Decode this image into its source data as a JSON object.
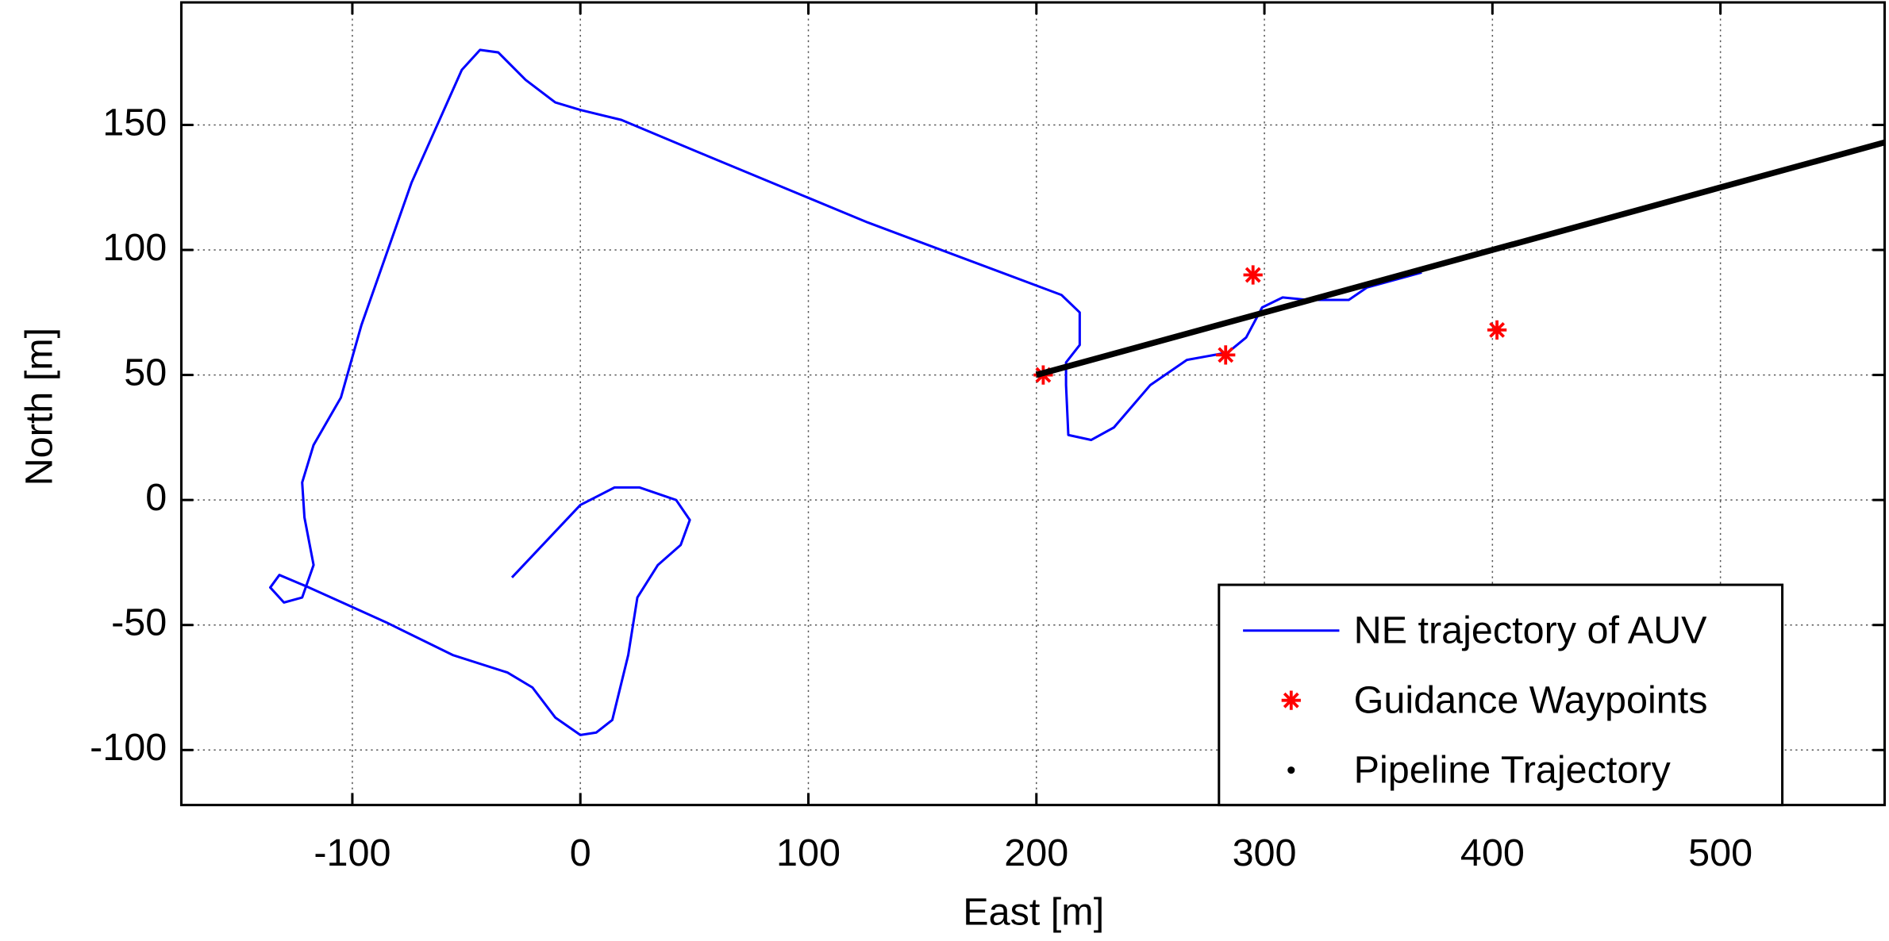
{
  "chart_data": {
    "type": "line",
    "xlabel": "East [m]",
    "ylabel": "North [m]",
    "xlim": [
      -175,
      572
    ],
    "ylim": [
      -122,
      199
    ],
    "xticks": [
      -100,
      0,
      100,
      200,
      300,
      400,
      500
    ],
    "yticks": [
      -100,
      -50,
      0,
      50,
      100,
      150
    ],
    "grid": true,
    "legend": "lower right",
    "series": [
      {
        "name": "NE trajectory of AUV",
        "color": "#0000ff",
        "marker": "none",
        "linewidth": 2,
        "x": [
          -30,
          0,
          15,
          26,
          42,
          48,
          44,
          34,
          25,
          21,
          14,
          7,
          0,
          -11,
          -21,
          -32,
          -56,
          -85,
          -119,
          -132,
          -136,
          -130,
          -122,
          -117,
          -121,
          -122,
          -117,
          -105,
          -96,
          -74,
          -52,
          -44,
          -36,
          -24,
          -11,
          0,
          18,
          52,
          126,
          211,
          219,
          219,
          213,
          213,
          214,
          224,
          234,
          250,
          266,
          284,
          292,
          299,
          308,
          319,
          337,
          345,
          369
        ],
        "values": [
          -31,
          -2,
          5,
          5,
          0,
          -8,
          -18,
          -26,
          -39,
          -62,
          -88,
          -93,
          -94,
          -87,
          -75,
          -69,
          -62,
          -49,
          -35,
          -30,
          -35,
          -41,
          -39,
          -26,
          -7,
          7,
          22,
          41,
          70,
          127,
          172,
          180,
          179,
          168,
          159,
          156,
          152,
          139,
          111,
          82,
          75,
          62,
          55,
          46,
          26,
          24,
          29,
          46,
          56,
          59,
          65,
          77,
          81,
          80,
          80,
          85,
          91
        ]
      },
      {
        "name": "Guidance Waypoints",
        "color": "#ff0000",
        "marker": "*",
        "linewidth": 0,
        "x": [
          203,
          283,
          295,
          402
        ],
        "values": [
          50,
          58,
          90,
          68
        ]
      },
      {
        "name": "Pipeline Trajectory",
        "color": "#000000",
        "marker": ".",
        "linewidth": 5,
        "x": [
          200,
          572
        ],
        "values": [
          50,
          143
        ]
      }
    ]
  }
}
